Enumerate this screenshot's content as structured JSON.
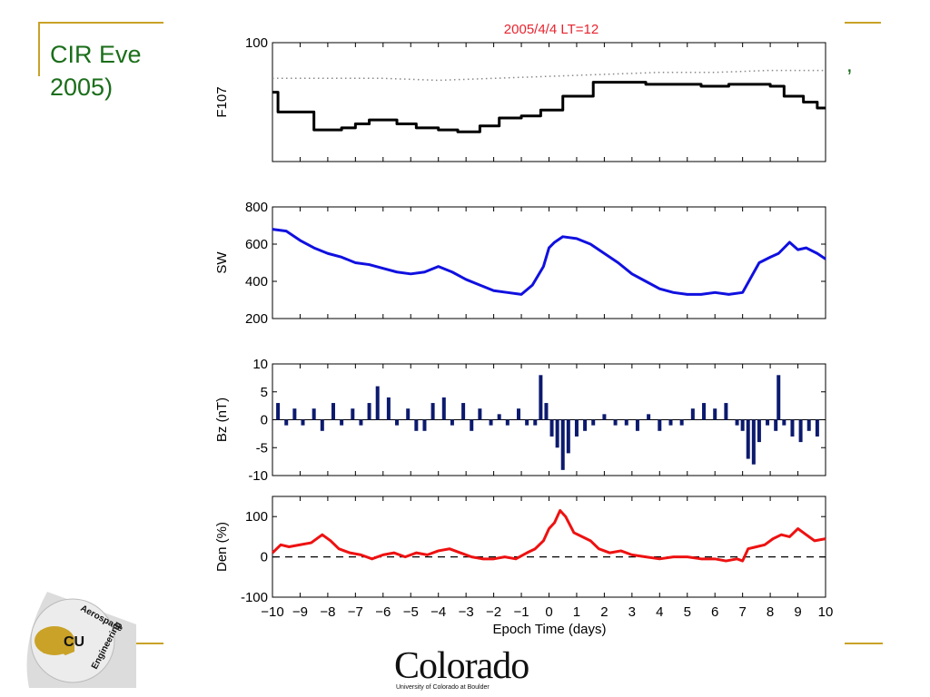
{
  "slide": {
    "title_lines": [
      "CIR Eve",
      "2005)"
    ],
    "trailing_text": ",",
    "accent_color": "#c9a227",
    "title_color": "#1a6e1a"
  },
  "footer": {
    "wordmark": "Colorado",
    "subline": "University of Colorado at Boulder",
    "logo_texts": [
      "Aerospace",
      "Engineering"
    ],
    "logo_icon": "cu-buffalo-logo"
  },
  "chart_data": {
    "type": "line",
    "title": "2005/4/4   LT=12",
    "title_color": "#e8232e",
    "xlabel": "Epoch Time (days)",
    "xlim": [
      -10,
      10
    ],
    "xticks": [
      -10,
      -9,
      -8,
      -7,
      -6,
      -5,
      -4,
      -3,
      -2,
      -1,
      0,
      1,
      2,
      3,
      4,
      5,
      6,
      7,
      8,
      9,
      10
    ],
    "panels": [
      {
        "ylabel": "F107",
        "yticks": [
          100
        ],
        "ylim": [
          40,
          100
        ],
        "series": [
          {
            "style": "dotted",
            "color": "#888888",
            "x": [
              -10,
              -8,
              -6,
              -4,
              -2,
              0,
              2,
              4,
              6,
              8,
              10
            ],
            "y": [
              82,
              82,
              82,
              81,
              82,
              83,
              84,
              85,
              85,
              86,
              86
            ]
          },
          {
            "style": "solid",
            "color": "#000000",
            "type": "step",
            "x": [
              -10,
              -9.8,
              -9.2,
              -8.5,
              -7.5,
              -7,
              -6.5,
              -5.5,
              -4.8,
              -4,
              -3.3,
              -2.5,
              -1.8,
              -1,
              -0.3,
              0.5,
              1.1,
              1.6,
              3.5,
              5.5,
              6.5,
              7.3,
              8,
              8.5,
              9.2,
              9.7,
              10
            ],
            "y": [
              75,
              65,
              65,
              56,
              57,
              59,
              61,
              59,
              57,
              56,
              55,
              58,
              62,
              63,
              66,
              73,
              73,
              80,
              79,
              78,
              79,
              79,
              78,
              73,
              70,
              67,
              67
            ]
          }
        ]
      },
      {
        "ylabel": "SW",
        "yticks": [
          200,
          400,
          600,
          800
        ],
        "ylim": [
          200,
          800
        ],
        "series": [
          {
            "style": "solid",
            "color": "#1010e0",
            "x": [
              -10,
              -9.5,
              -9,
              -8.5,
              -8,
              -7.5,
              -7,
              -6.5,
              -6,
              -5.5,
              -5,
              -4.5,
              -4,
              -3.5,
              -3,
              -2.5,
              -2,
              -1.5,
              -1,
              -0.6,
              -0.2,
              0,
              0.2,
              0.5,
              1,
              1.5,
              2,
              2.5,
              3,
              3.5,
              4,
              4.5,
              5,
              5.5,
              6,
              6.5,
              7,
              7.3,
              7.6,
              8,
              8.3,
              8.7,
              9,
              9.3,
              9.7,
              10
            ],
            "y": [
              680,
              670,
              620,
              580,
              550,
              530,
              500,
              490,
              470,
              450,
              440,
              450,
              480,
              450,
              410,
              380,
              350,
              340,
              330,
              380,
              480,
              580,
              610,
              640,
              630,
              600,
              550,
              500,
              440,
              400,
              360,
              340,
              330,
              330,
              340,
              330,
              340,
              420,
              500,
              530,
              550,
              610,
              570,
              580,
              550,
              520
            ]
          }
        ]
      },
      {
        "ylabel": "Bz (nT)",
        "yticks": [
          -10,
          -5,
          0,
          5,
          10
        ],
        "ylim": [
          -10,
          10
        ],
        "series": [
          {
            "style": "bars",
            "color": "#0c1a6e",
            "x": [
              -9.8,
              -9.5,
              -9.2,
              -8.9,
              -8.5,
              -8.2,
              -7.8,
              -7.5,
              -7.1,
              -6.8,
              -6.5,
              -6.2,
              -5.8,
              -5.5,
              -5.1,
              -4.8,
              -4.5,
              -4.2,
              -3.8,
              -3.5,
              -3.1,
              -2.8,
              -2.5,
              -2.1,
              -1.8,
              -1.5,
              -1.1,
              -0.8,
              -0.5,
              -0.3,
              -0.1,
              0.1,
              0.3,
              0.5,
              0.7,
              1.0,
              1.3,
              1.6,
              2.0,
              2.4,
              2.8,
              3.2,
              3.6,
              4.0,
              4.4,
              4.8,
              5.2,
              5.6,
              6.0,
              6.4,
              6.8,
              7.0,
              7.2,
              7.4,
              7.6,
              7.9,
              8.2,
              8.3,
              8.5,
              8.8,
              9.1,
              9.4,
              9.7
            ],
            "y": [
              3,
              -1,
              2,
              -1,
              2,
              -2,
              3,
              -1,
              2,
              -1,
              3,
              6,
              4,
              -1,
              2,
              -2,
              -2,
              3,
              4,
              -1,
              3,
              -2,
              2,
              -1,
              1,
              -1,
              2,
              -1,
              -1,
              8,
              3,
              -3,
              -5,
              -9,
              -6,
              -3,
              -2,
              -1,
              1,
              -1,
              -1,
              -2,
              1,
              -2,
              -1,
              -1,
              2,
              3,
              2,
              3,
              -1,
              -2,
              -7,
              -8,
              -4,
              -1,
              -2,
              8,
              -1,
              -3,
              -4,
              -2,
              -3
            ]
          }
        ]
      },
      {
        "ylabel": "Den (%)",
        "yticks": [
          -100,
          0,
          100
        ],
        "ylim": [
          -100,
          150
        ],
        "series": [
          {
            "style": "dashed",
            "color": "#000000",
            "x": [
              -10,
              10
            ],
            "y": [
              0,
              0
            ]
          },
          {
            "style": "solid",
            "color": "#ee1111",
            "x": [
              -10,
              -9.7,
              -9.4,
              -9,
              -8.6,
              -8.2,
              -7.9,
              -7.6,
              -7.2,
              -6.8,
              -6.4,
              -6,
              -5.6,
              -5.2,
              -4.8,
              -4.4,
              -4,
              -3.6,
              -3.2,
              -2.8,
              -2.4,
              -2,
              -1.6,
              -1.2,
              -0.8,
              -0.5,
              -0.2,
              0,
              0.2,
              0.4,
              0.6,
              0.9,
              1.2,
              1.5,
              1.8,
              2.2,
              2.6,
              3,
              3.5,
              4,
              4.5,
              5,
              5.5,
              6,
              6.4,
              6.8,
              7,
              7.2,
              7.5,
              7.8,
              8.1,
              8.4,
              8.7,
              9,
              9.3,
              9.6,
              10
            ],
            "y": [
              10,
              30,
              25,
              30,
              35,
              55,
              40,
              20,
              10,
              5,
              -5,
              5,
              10,
              0,
              10,
              5,
              15,
              20,
              10,
              0,
              -5,
              -5,
              0,
              -5,
              10,
              20,
              40,
              70,
              85,
              115,
              100,
              60,
              50,
              40,
              20,
              10,
              15,
              5,
              0,
              -5,
              0,
              0,
              -5,
              -5,
              -10,
              -5,
              -10,
              20,
              25,
              30,
              45,
              55,
              50,
              70,
              55,
              40,
              45
            ]
          }
        ]
      }
    ]
  }
}
